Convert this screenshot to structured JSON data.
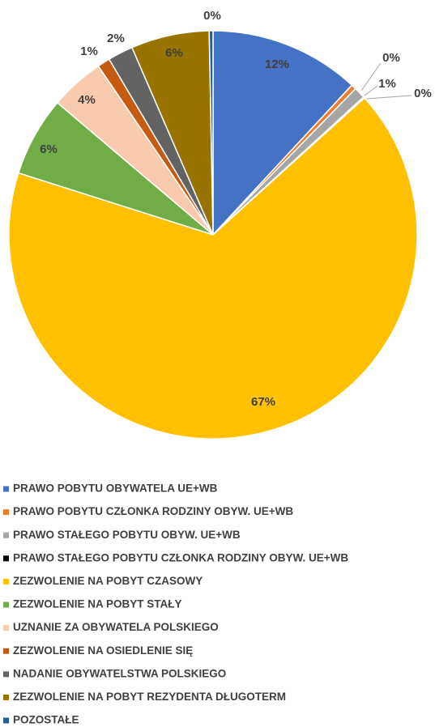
{
  "chart_data": {
    "type": "pie",
    "categories": [
      "PRAWO POBYTU OBYWATELA UE+WB",
      "PRAWO POBYTU CZŁONKA RODZINY OBYW. UE+WB",
      "PRAWO STAŁEGO POBYTU OBYW. UE+WB",
      "PRAWO STAŁEGO POBYTU CZŁONKA RODZINY OBYW. UE+WB",
      "ZEZWOLENIE NA POBYT CZASOWY",
      "ZEZWOLENIE NA POBYT STAŁY",
      "UZNANIE ZA OBYWATELA POLSKIEGO",
      "ZEZWOLENIE NA OSIEDLENIE SIĘ",
      "NADANIE OBYWATELSTWA POLSKIEGO",
      "ZEZWOLENIE NA POBYT REZYDENTA DŁUGOTERM",
      "POZOSTAŁE"
    ],
    "values": [
      11.9,
      0.4,
      0.9,
      0.1,
      66.6,
      6.3,
      4.3,
      1.0,
      2.0,
      6.2,
      0.3
    ],
    "value_labels": [
      "12%",
      "0%",
      "1%",
      "0%",
      "67%",
      "6%",
      "4%",
      "1%",
      "2%",
      "6%",
      "0%"
    ],
    "colors": [
      "#4472c4",
      "#ed7d31",
      "#a5a5a5",
      "#000000",
      "#ffc000",
      "#70ad47",
      "#f8cbad",
      "#c55a11",
      "#636363",
      "#997300",
      "#255e91"
    ],
    "legend": "bottom"
  }
}
